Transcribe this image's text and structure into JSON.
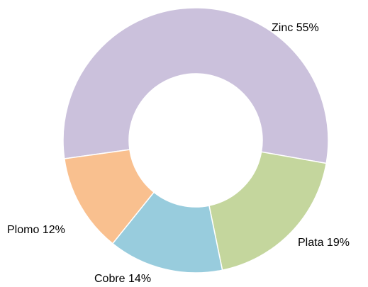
{
  "chart_data": {
    "type": "donut",
    "categories": [
      "Zinc",
      "Plata",
      "Cobre",
      "Plomo"
    ],
    "values": [
      55,
      19,
      14,
      12
    ],
    "value_labels": [
      "55%",
      "19%",
      "14%",
      "12%"
    ],
    "colors": [
      "#cbc1dc",
      "#c4d69d",
      "#98ccdd",
      "#f9c08f"
    ]
  }
}
